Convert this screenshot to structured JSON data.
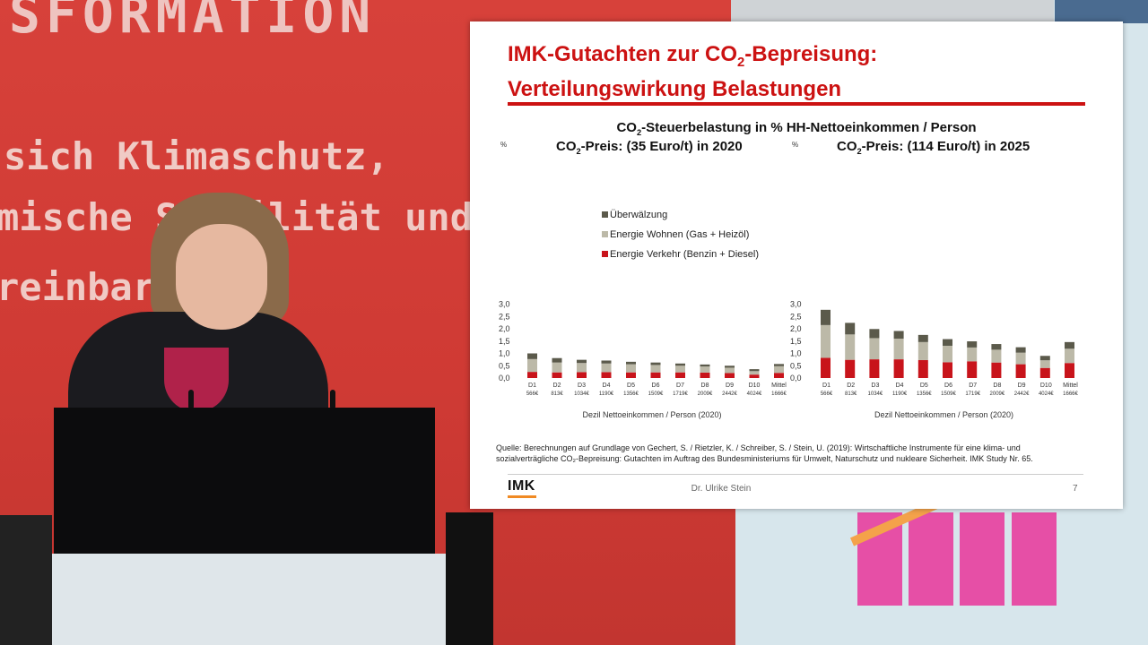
{
  "banner": {
    "top_text": "SFORMATION",
    "line1": "sich Klimaschutz,",
    "line2": "mische Stabilität und sozi",
    "line3": "reinbare"
  },
  "slide": {
    "title_line1_pre": "IMK-Gutachten zur CO",
    "title_line1_sub": "2",
    "title_line1_post": "-Bepreisung:",
    "title_line2": "Verteilungswirkung Belastungen",
    "chart_title_pre": "CO",
    "chart_title_sub": "2",
    "chart_title_post": "-Steuerbelastung in % HH-Nettoeinkommen / Person",
    "left_subtitle_pre": "CO",
    "left_subtitle_sub": "2",
    "left_subtitle_post": "-Preis: (35 Euro/t) in 2020",
    "right_subtitle_pre": "CO",
    "right_subtitle_sub": "2",
    "right_subtitle_post": "-Preis: (114 Euro/t) in 2025",
    "source_line1": "Quelle: Berechnungen auf Grundlage von Gechert, S. / Rietzler, K. / Schreiber, S. / Stein, U. (2019): Wirtschaftliche Instrumente für eine klima- und",
    "source_line2": "sozialverträgliche CO₂-Bepreisung: Gutachten im Auftrag des Bundesministeriums für Umwelt, Naturschutz und nukleare Sicherheit. IMK Study Nr. 65.",
    "logo": "IMK",
    "presenter": "Dr. Ulrike Stein",
    "page_number": "7"
  },
  "colors": {
    "verkehr": "#c8141b",
    "wohnen": "#bcb9a8",
    "ueberwaelzung": "#5b5a4b",
    "accent": "#cc1212",
    "axis_text": "#333333"
  },
  "chart_data": [
    {
      "type": "bar",
      "stacked": true,
      "title": "CO₂-Preis: (35 Euro/t) in 2020",
      "ylabel": "%",
      "xlabel": "Dezil Nettoeinkommen / Person (2020)",
      "ylim": [
        0,
        3
      ],
      "yticks": [
        "0,0",
        "0,5",
        "1,0",
        "1,5",
        "2,0",
        "2,5",
        "3,0"
      ],
      "categories": [
        "D1",
        "D2",
        "D3",
        "D4",
        "D5",
        "D6",
        "D7",
        "D8",
        "D9",
        "D10",
        "Mittel"
      ],
      "category_sublabels": [
        "566€",
        "813€",
        "1034€",
        "1190€",
        "1356€",
        "1509€",
        "1719€",
        "2009€",
        "2442€",
        "4024€",
        "1666€"
      ],
      "legend_position": "upper-left",
      "series": [
        {
          "name": "Energie Verkehr (Benzin + Diesel)",
          "values": [
            0.25,
            0.23,
            0.24,
            0.24,
            0.23,
            0.23,
            0.23,
            0.22,
            0.2,
            0.14,
            0.21
          ]
        },
        {
          "name": "Energie Wohnen (Gas + Heizöl)",
          "values": [
            0.52,
            0.4,
            0.37,
            0.35,
            0.33,
            0.3,
            0.27,
            0.25,
            0.22,
            0.14,
            0.27
          ]
        },
        {
          "name": "Überwälzung",
          "values": [
            0.23,
            0.18,
            0.13,
            0.12,
            0.1,
            0.1,
            0.09,
            0.08,
            0.08,
            0.08,
            0.09
          ]
        }
      ]
    },
    {
      "type": "bar",
      "stacked": true,
      "title": "CO₂-Preis: (114 Euro/t) in 2025",
      "ylabel": "%",
      "xlabel": "Dezil Nettoeinkommen / Person (2020)",
      "ylim": [
        0,
        3
      ],
      "yticks": [
        "0,0",
        "0,5",
        "1,0",
        "1,5",
        "2,0",
        "2,5",
        "3,0"
      ],
      "categories": [
        "D1",
        "D2",
        "D3",
        "D4",
        "D5",
        "D6",
        "D7",
        "D8",
        "D9",
        "D10",
        "Mittel"
      ],
      "category_sublabels": [
        "566€",
        "813€",
        "1034€",
        "1190€",
        "1356€",
        "1509€",
        "1719€",
        "2009€",
        "2442€",
        "4024€",
        "1666€"
      ],
      "series": [
        {
          "name": "Energie Verkehr (Benzin + Diesel)",
          "values": [
            0.82,
            0.74,
            0.76,
            0.76,
            0.73,
            0.64,
            0.68,
            0.63,
            0.56,
            0.41,
            0.61
          ]
        },
        {
          "name": "Energie Wohnen (Gas + Heizöl)",
          "values": [
            1.33,
            1.03,
            0.86,
            0.84,
            0.73,
            0.67,
            0.56,
            0.52,
            0.47,
            0.31,
            0.58
          ]
        },
        {
          "name": "Überwälzung",
          "values": [
            0.62,
            0.47,
            0.37,
            0.31,
            0.29,
            0.27,
            0.25,
            0.23,
            0.22,
            0.18,
            0.27
          ]
        }
      ]
    }
  ]
}
